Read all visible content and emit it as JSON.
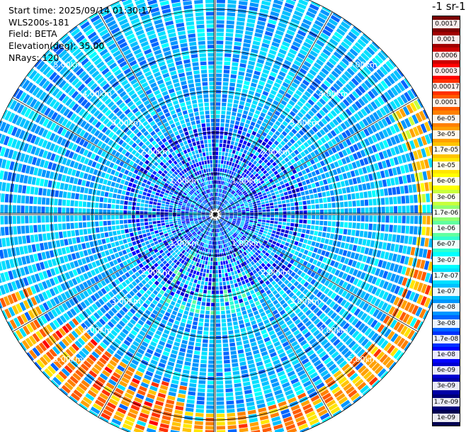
{
  "header": {
    "start_time": "Start time: 2025/09/14 01:30:17",
    "instrument": "WLS200s-181",
    "field": "Field: BETA",
    "elevation": "Elevation(deg): 35.00",
    "nrays": "NRays: 120"
  },
  "colorbar": {
    "title": "-1 sr-1",
    "labels": [
      "0.0017",
      "0.001",
      "0.0006",
      "0.0003",
      "0.00017",
      "0.0001",
      "6e-05",
      "3e-05",
      "1.7e-05",
      "1e-05",
      "6e-06",
      "3e-06",
      "1.7e-06",
      "1e-06",
      "6e-07",
      "3e-07",
      "1.7e-07",
      "1e-07",
      "6e-08",
      "3e-08",
      "1.7e-08",
      "1e-08",
      "6e-09",
      "3e-09",
      "1.7e-09",
      "1e-09"
    ],
    "colors": [
      "#7a0000",
      "#a00000",
      "#cc0000",
      "#ff0000",
      "#ff3000",
      "#ff5a00",
      "#ff8000",
      "#ffa000",
      "#ffc400",
      "#ffe600",
      "#ffff00",
      "#c8ff3c",
      "#90ff70",
      "#60ffa0",
      "#30ffd0",
      "#00ffff",
      "#00e0ff",
      "#00bfff",
      "#0096ff",
      "#0064ff",
      "#0032ff",
      "#0000ff",
      "#0000d2",
      "#0000a5",
      "#000078",
      "#000050"
    ]
  },
  "chart_data": {
    "type": "heatmap",
    "projection": "polar PPI",
    "field": "BETA",
    "n_rays": 120,
    "range_rings_km": [
      1,
      2,
      3,
      4,
      5
    ],
    "ring_labels": [
      "1.00km",
      "2.00km",
      "3.00km",
      "4.00km",
      "5.00km"
    ],
    "max_range_km": 5.7,
    "color_scale": "log",
    "value_range": [
      1e-09,
      0.0017
    ],
    "background_level": 1e-07,
    "features": [
      {
        "azimuth_range_deg": [
          100,
          250
        ],
        "range_km": [
          4.8,
          5.6
        ],
        "level": 3e-05
      },
      {
        "azimuth_range_deg": [
          60,
          100
        ],
        "range_km": [
          4.9,
          5.6
        ],
        "level": 1e-05
      },
      {
        "azimuth_range_deg": [
          190,
          235
        ],
        "range_km": [
          4.2,
          5.3
        ],
        "level": 6e-05
      },
      {
        "azimuth_range_deg": [
          150,
          215
        ],
        "range_km": [
          1.0,
          2.4
        ],
        "level": 3e-07
      }
    ]
  }
}
